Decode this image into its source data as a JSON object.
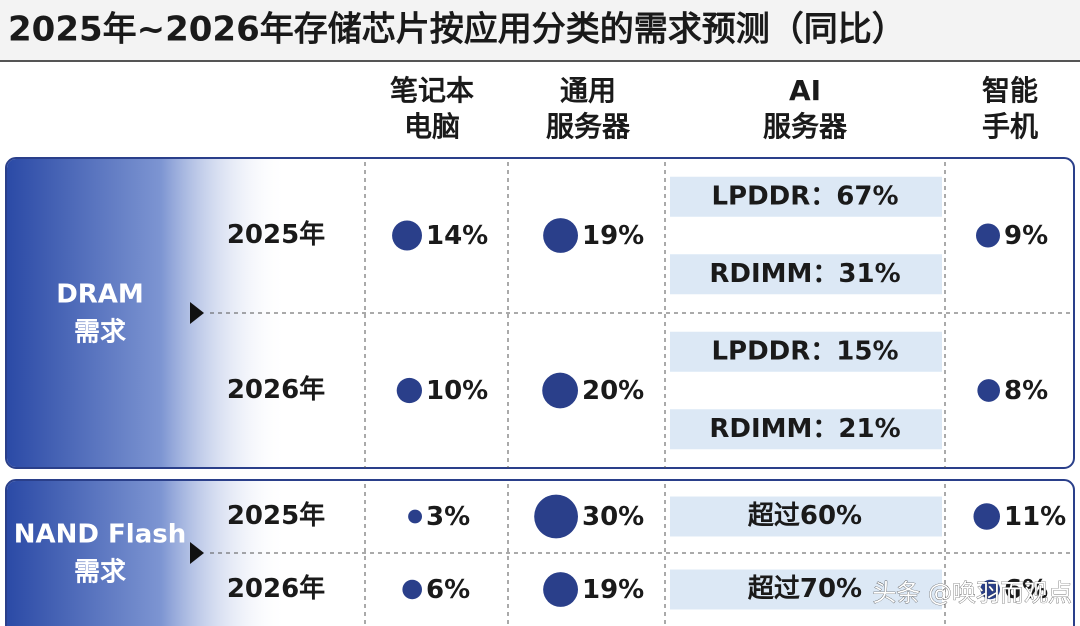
{
  "title": "2025年~2026年存储芯片按应用分类的需求预测（同比）",
  "columns": [
    [
      "笔记本",
      "电脑"
    ],
    [
      "通用",
      "服务器"
    ],
    [
      "AI",
      "服务器"
    ],
    [
      "智能",
      "手机"
    ]
  ],
  "groups": [
    {
      "label": [
        "DRAM",
        "需求"
      ],
      "rows": [
        {
          "year": "2025年",
          "notebook": {
            "value": 14,
            "label": "14%"
          },
          "general_server": {
            "value": 19,
            "label": "19%"
          },
          "ai_server": [
            "LPDDR：67%",
            "RDIMM：31%"
          ],
          "smartphone": {
            "value": 9,
            "label": "9%"
          }
        },
        {
          "year": "2026年",
          "notebook": {
            "value": 10,
            "label": "10%"
          },
          "general_server": {
            "value": 20,
            "label": "20%"
          },
          "ai_server": [
            "LPDDR：15%",
            "RDIMM：21%"
          ],
          "smartphone": {
            "value": 8,
            "label": "8%"
          }
        }
      ]
    },
    {
      "label": [
        "NAND Flash",
        "需求"
      ],
      "rows": [
        {
          "year": "2025年",
          "notebook": {
            "value": 3,
            "label": "3%"
          },
          "general_server": {
            "value": 30,
            "label": "30%"
          },
          "ai_server": [
            "超过60%"
          ],
          "smartphone": {
            "value": 11,
            "label": "11%"
          }
        },
        {
          "year": "2026年",
          "notebook": {
            "value": 6,
            "label": "6%"
          },
          "general_server": {
            "value": 19,
            "label": "19%"
          },
          "ai_server": [
            "超过70%"
          ],
          "smartphone": {
            "value": 6,
            "label": "6%"
          }
        }
      ]
    }
  ],
  "watermark": "头条 @唤羽而观点"
}
